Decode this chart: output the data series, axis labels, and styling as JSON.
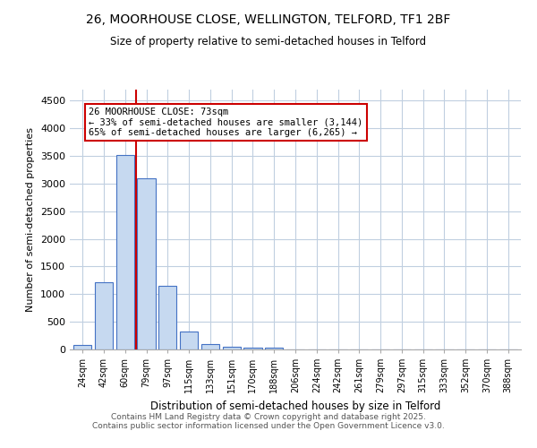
{
  "title_line1": "26, MOORHOUSE CLOSE, WELLINGTON, TELFORD, TF1 2BF",
  "title_line2": "Size of property relative to semi-detached houses in Telford",
  "xlabel": "Distribution of semi-detached houses by size in Telford",
  "ylabel": "Number of semi-detached properties",
  "categories": [
    "24sqm",
    "42sqm",
    "60sqm",
    "79sqm",
    "97sqm",
    "115sqm",
    "133sqm",
    "151sqm",
    "170sqm",
    "188sqm",
    "206sqm",
    "224sqm",
    "242sqm",
    "261sqm",
    "279sqm",
    "297sqm",
    "315sqm",
    "333sqm",
    "352sqm",
    "370sqm",
    "388sqm"
  ],
  "values": [
    75,
    1220,
    3520,
    3100,
    1150,
    330,
    100,
    55,
    40,
    25,
    0,
    0,
    0,
    0,
    0,
    0,
    0,
    0,
    0,
    0,
    0
  ],
  "bar_color": "#c6d9f0",
  "bar_edge_color": "#4472c4",
  "annotation_text": "26 MOORHOUSE CLOSE: 73sqm\n← 33% of semi-detached houses are smaller (3,144)\n65% of semi-detached houses are larger (6,265) →",
  "annotation_box_color": "#ffffff",
  "annotation_box_edge": "#cc0000",
  "red_line_color": "#cc0000",
  "ylim": [
    0,
    4700
  ],
  "yticks": [
    0,
    500,
    1000,
    1500,
    2000,
    2500,
    3000,
    3500,
    4000,
    4500
  ],
  "footer_line1": "Contains HM Land Registry data © Crown copyright and database right 2025.",
  "footer_line2": "Contains public sector information licensed under the Open Government Licence v3.0.",
  "bg_color": "#ffffff",
  "grid_color": "#c0cfe0"
}
